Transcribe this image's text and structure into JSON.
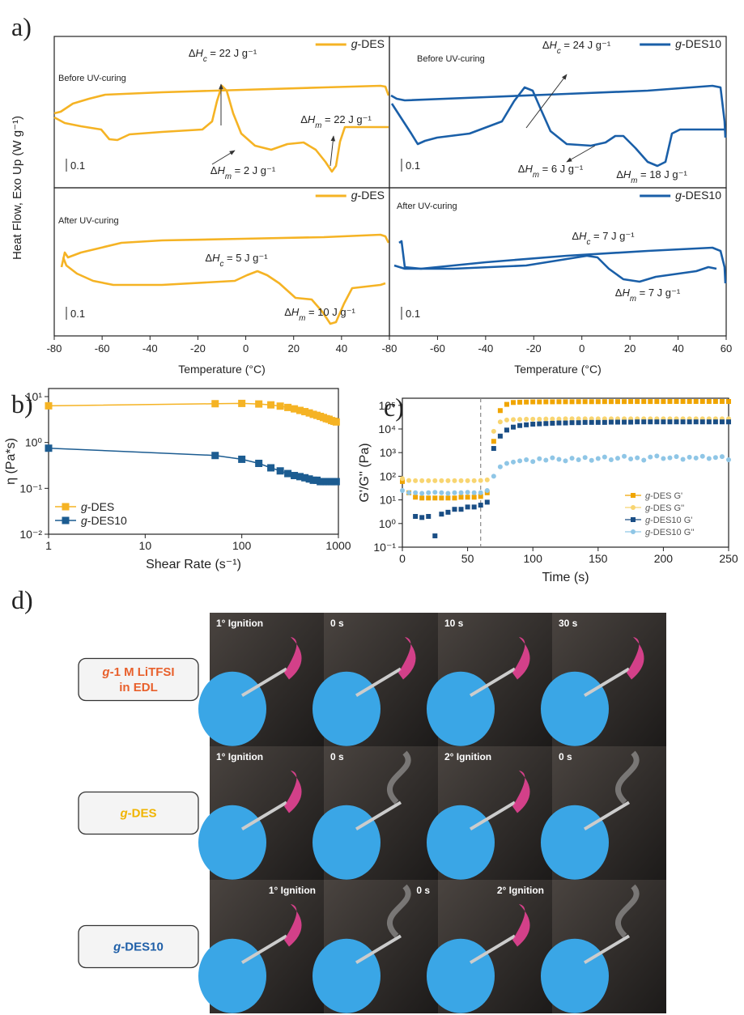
{
  "panel_labels": [
    "a)",
    "b)",
    "c)",
    "d)"
  ],
  "dsc_ylabel": "Heat Flow, Exo Up (W g⁻¹)",
  "chart_data": [
    {
      "type": "dsc",
      "subtitle": "Before UV-curing",
      "series": [
        {
          "name": "g-DES",
          "color": "#f5b324"
        }
      ],
      "xlim": [
        -80,
        60
      ],
      "annotations": [
        "ΔHc = 22 J g⁻¹",
        "ΔHm = 22 J g⁻¹",
        "ΔHm = 2 J g⁻¹"
      ],
      "scale_bar": 0.1
    },
    {
      "type": "dsc",
      "subtitle": "Before UV-curing",
      "series": [
        {
          "name": "g-DES10",
          "color": "#1a5fa8"
        }
      ],
      "xlim": [
        -80,
        60
      ],
      "annotations": [
        "ΔHc = 24 J g⁻¹",
        "ΔHm = 6 J g⁻¹",
        "ΔHm = 18 J g⁻¹"
      ],
      "scale_bar": 0.1
    },
    {
      "type": "dsc",
      "subtitle": "After UV-curing",
      "series": [
        {
          "name": "g-DES",
          "color": "#f5b324"
        }
      ],
      "xlim": [
        -80,
        60
      ],
      "xticks": [
        -80,
        -60,
        -40,
        -20,
        0,
        20,
        40
      ],
      "xlabel": "Temperature (°C)",
      "annotations": [
        "ΔHc = 5 J g⁻¹",
        "ΔHm = 10 J g⁻¹"
      ],
      "scale_bar": 0.1
    },
    {
      "type": "dsc",
      "subtitle": "After UV-curing",
      "series": [
        {
          "name": "g-DES10",
          "color": "#1a5fa8"
        }
      ],
      "xlim": [
        -80,
        60
      ],
      "xticks": [
        -80,
        -60,
        -40,
        -20,
        0,
        20,
        40,
        60
      ],
      "xlabel": "Temperature (°C)",
      "annotations": [
        "ΔHc = 7 J g⁻¹",
        "ΔHm = 7 J g⁻¹"
      ],
      "scale_bar": 0.1
    },
    {
      "type": "line",
      "xlabel": "Shear Rate (s⁻¹)",
      "ylabel": "η (Pa*s)",
      "xscale": "log",
      "yscale": "log",
      "xlim": [
        1,
        1000
      ],
      "ylim": [
        0.01,
        15
      ],
      "xticks": [
        1,
        10,
        100,
        1000
      ],
      "yticks": [
        {
          "value": 0.01,
          "label": "10⁻²"
        },
        {
          "value": 0.1,
          "label": "10⁻¹"
        },
        {
          "value": 1,
          "label": "10⁰"
        },
        {
          "value": 10,
          "label": "10¹"
        }
      ],
      "legend": "lower left",
      "x": [
        1,
        53,
        100,
        150,
        200,
        250,
        300,
        350,
        400,
        450,
        500,
        550,
        600,
        650,
        700,
        750,
        800,
        850,
        900,
        950
      ],
      "series": [
        {
          "name": "g-DES",
          "color": "#f5b324",
          "values": [
            6.3,
            7.0,
            7.1,
            6.9,
            6.6,
            6.2,
            5.8,
            5.4,
            5.0,
            4.7,
            4.4,
            4.1,
            3.9,
            3.7,
            3.5,
            3.3,
            3.2,
            3.0,
            2.9,
            2.8
          ]
        },
        {
          "name": "g-DES10",
          "color": "#1c5c91",
          "values": [
            0.75,
            0.52,
            0.43,
            0.35,
            0.28,
            0.24,
            0.21,
            0.19,
            0.18,
            0.17,
            0.16,
            0.15,
            0.15,
            0.14,
            0.14,
            0.14,
            0.14,
            0.14,
            0.14,
            0.14
          ]
        }
      ]
    },
    {
      "type": "scatter",
      "xlabel": "Time (s)",
      "ylabel": "G'/G'' (Pa)",
      "yscale": "log",
      "xlim": [
        0,
        250
      ],
      "ylim": [
        0.1,
        200000
      ],
      "xticks": [
        0,
        50,
        100,
        150,
        200,
        250
      ],
      "yticks": [
        {
          "value": 0.1,
          "label": "10⁻¹"
        },
        {
          "value": 1,
          "label": "10⁰"
        },
        {
          "value": 10,
          "label": "10¹"
        },
        {
          "value": 100,
          "label": "10²"
        },
        {
          "value": 1000,
          "label": "10³"
        },
        {
          "value": 10000,
          "label": "10⁴"
        },
        {
          "value": 100000,
          "label": "10⁵"
        }
      ],
      "vlines": [
        60
      ],
      "legend": "lower right",
      "x": [
        0,
        5,
        10,
        15,
        20,
        25,
        30,
        35,
        40,
        45,
        50,
        55,
        60,
        65,
        70,
        75,
        80,
        85,
        90,
        95,
        100,
        105,
        110,
        115,
        120,
        125,
        130,
        135,
        140,
        145,
        150,
        155,
        160,
        165,
        170,
        175,
        180,
        185,
        190,
        195,
        200,
        205,
        210,
        215,
        220,
        225,
        230,
        235,
        240,
        245,
        250
      ],
      "series": [
        {
          "name": "g-DES G'",
          "color": "#f0a500",
          "marker": "square",
          "values": [
            60,
            20,
            13,
            12,
            12,
            12,
            12,
            12,
            12,
            13,
            13,
            13,
            14,
            20,
            3000,
            60000,
            110000,
            132000,
            136000,
            138000,
            140000,
            140000,
            141000,
            141000,
            142000,
            142000,
            142000,
            143000,
            143000,
            143000,
            143000,
            144000,
            144000,
            144000,
            144000,
            145000,
            145000,
            145000,
            145000,
            145000,
            145000,
            146000,
            146000,
            146000,
            146000,
            146000,
            146000,
            146000,
            146000,
            146000,
            146000
          ]
        },
        {
          "name": "g-DES G''",
          "color": "#f8d571",
          "marker": "circle",
          "values": [
            80,
            66,
            65,
            65,
            65,
            65,
            65,
            65,
            65,
            65,
            65,
            65,
            66,
            70,
            8000,
            20000,
            24000,
            25000,
            25500,
            26000,
            26000,
            26000,
            26500,
            26500,
            26500,
            27000,
            27000,
            27000,
            27000,
            27000,
            27000,
            27000,
            27000,
            27000,
            27000,
            27000,
            27000,
            27000,
            27000,
            27000,
            27000,
            27000,
            27000,
            27000,
            27000,
            27000,
            27000,
            27000,
            27000,
            27000,
            27000
          ]
        },
        {
          "name": "g-DES10 G'",
          "color": "#1a4e85",
          "marker": "square",
          "values": [
            null,
            null,
            2,
            1.8,
            2,
            0.3,
            2.5,
            3,
            4,
            4,
            5,
            5,
            6,
            8,
            1500,
            5000,
            9000,
            12000,
            14000,
            15000,
            16000,
            16500,
            17000,
            17500,
            18000,
            18000,
            18500,
            18500,
            19000,
            19000,
            19000,
            19000,
            19500,
            19500,
            19500,
            19500,
            20000,
            20000,
            20000,
            20000,
            20000,
            20000,
            20000,
            20000,
            20000,
            20000,
            20000,
            20000,
            20000,
            20000,
            20000
          ]
        },
        {
          "name": "g-DES10 G''",
          "color": "#8fc6e6",
          "marker": "circle",
          "values": [
            25,
            20,
            20,
            19,
            20,
            21,
            20,
            19,
            20,
            20,
            21,
            20,
            20,
            25,
            100,
            250,
            350,
            400,
            450,
            500,
            420,
            550,
            480,
            600,
            520,
            450,
            580,
            500,
            620,
            470,
            560,
            650,
            500,
            580,
            700,
            540,
            600,
            480,
            650,
            720,
            560,
            600,
            680,
            520,
            640,
            590,
            700,
            560,
            620,
            680,
            500
          ]
        }
      ]
    }
  ],
  "photo_grid": {
    "rows": [
      {
        "label": [
          "g-1 M LiTFSI",
          "in EDL"
        ],
        "label_color": "#e8602c",
        "captions": [
          "1° Ignition",
          "0 s",
          "10 s",
          "30 s"
        ]
      },
      {
        "label": [
          "g-DES"
        ],
        "label_color": "#f0b400",
        "captions": [
          "1° Ignition",
          "0 s",
          "2° Ignition",
          "0 s"
        ]
      },
      {
        "label": [
          "g-DES10"
        ],
        "label_color": "#1f5fa8",
        "captions": [
          "1° Ignition",
          "0 s",
          "2° Ignition",
          ""
        ]
      }
    ]
  }
}
